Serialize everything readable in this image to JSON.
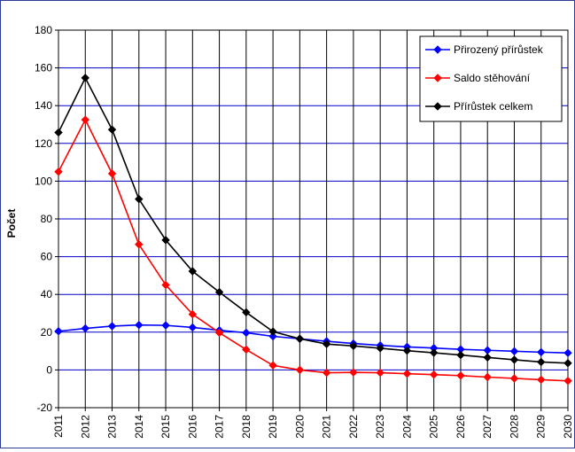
{
  "chart_data": {
    "type": "line",
    "title": "",
    "xlabel": "",
    "ylabel": "Počet",
    "ylim": [
      -20,
      180
    ],
    "y_ticks": [
      -20,
      0,
      20,
      40,
      60,
      80,
      100,
      120,
      140,
      160,
      180
    ],
    "x": [
      "2011",
      "2012",
      "2013",
      "2014",
      "2015",
      "2016",
      "2017",
      "2018",
      "2019",
      "2020",
      "2021",
      "2022",
      "2023",
      "2024",
      "2025",
      "2026",
      "2027",
      "2028",
      "2029",
      "2030"
    ],
    "grid": true,
    "legend_position": "top-right",
    "series": [
      {
        "name": "Přirozený přírůstek",
        "color": "#0000ff",
        "marker": "diamond",
        "values": [
          20.5,
          22,
          23.2,
          23.8,
          23.6,
          22.5,
          21,
          19.7,
          17.8,
          16.5,
          15.2,
          14,
          13,
          12.2,
          11.6,
          10.9,
          10.4,
          9.9,
          9.4,
          9
        ]
      },
      {
        "name": "Saldo stěhování",
        "color": "#ff0000",
        "marker": "diamond",
        "values": [
          105,
          132.5,
          104,
          66.5,
          45,
          29.5,
          19.7,
          10.8,
          2.4,
          0,
          -1.5,
          -1.3,
          -1.5,
          -2,
          -2.5,
          -3,
          -3.8,
          -4.5,
          -5.2,
          -5.8
        ]
      },
      {
        "name": "Přírůstek celkem",
        "color": "#000000",
        "marker": "diamond",
        "values": [
          125.8,
          154.7,
          127.3,
          90.5,
          68.8,
          52.3,
          41.2,
          30.5,
          20.3,
          16.5,
          13.7,
          12.7,
          11.5,
          10.2,
          9.1,
          7.9,
          6.6,
          5.4,
          4.2,
          3.6
        ]
      }
    ]
  }
}
